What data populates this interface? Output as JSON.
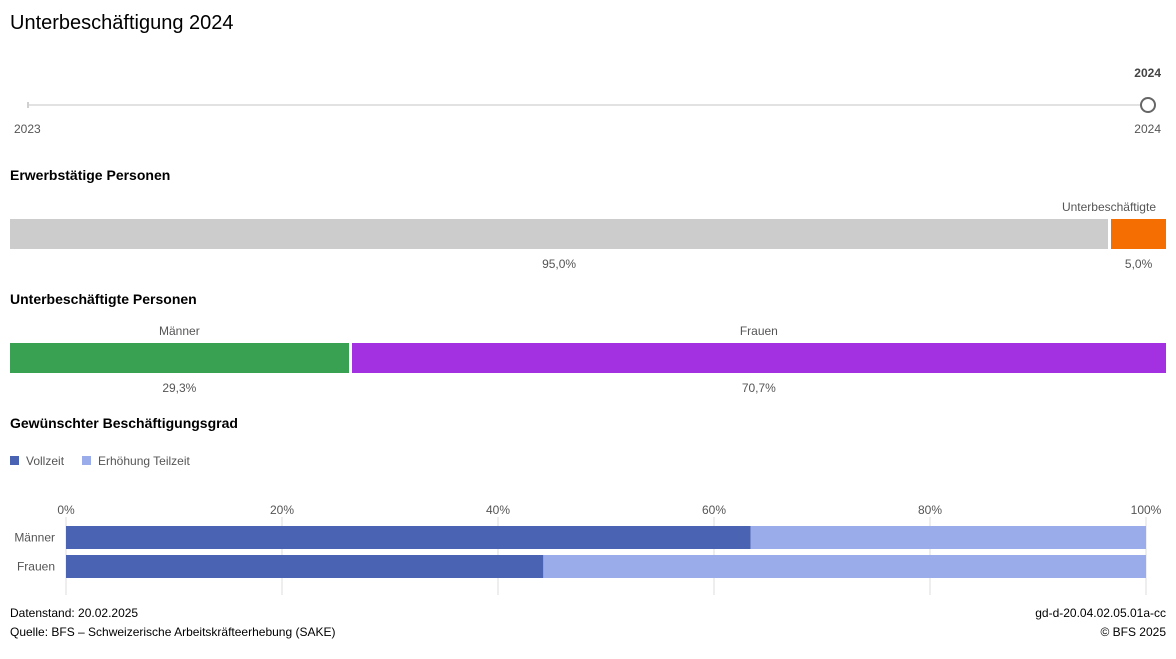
{
  "title": "Unterbeschäftigung 2024",
  "slider": {
    "selected": "2024",
    "start_label": "2023",
    "end_label": "2024",
    "value": 2024,
    "min": 2023,
    "max": 2024
  },
  "colors": {
    "grey": "#cccccc",
    "orange": "#f56e02",
    "green": "#38a152",
    "purple": "#a330e1",
    "vollzeit": "#4a63b2",
    "teilzeit": "#9aacea",
    "grid": "#dddddd"
  },
  "chart_data": [
    {
      "type": "bar",
      "stacked": true,
      "title": "Erwerbstätige Personen",
      "segments": [
        {
          "name": "",
          "value": 95.0,
          "label": "95,0%",
          "color": "#cccccc"
        },
        {
          "name": "Unterbeschäftigte",
          "value": 5.0,
          "label": "5,0%",
          "color": "#f56e02"
        }
      ]
    },
    {
      "type": "bar",
      "stacked": true,
      "title": "Unterbeschäftigte Personen",
      "segments": [
        {
          "name": "Männer",
          "value": 29.3,
          "label": "29,3%",
          "color": "#38a152"
        },
        {
          "name": "Frauen",
          "value": 70.7,
          "label": "70,7%",
          "color": "#a330e1"
        }
      ]
    },
    {
      "type": "bar",
      "stacked": true,
      "orientation": "horizontal",
      "title": "Gewünschter Beschäftigungsgrad",
      "categories": [
        "Männer",
        "Frauen"
      ],
      "series": [
        {
          "name": "Vollzeit",
          "values": [
            63.4,
            44.2
          ],
          "color": "#4a63b2"
        },
        {
          "name": "Erhöhung Teilzeit",
          "values": [
            36.6,
            55.8
          ],
          "color": "#9aacea"
        }
      ],
      "xlim": [
        0,
        100
      ],
      "ticks": [
        "0%",
        "20%",
        "40%",
        "60%",
        "80%",
        "100%"
      ],
      "tick_values": [
        0,
        20,
        40,
        60,
        80,
        100
      ],
      "grid": true,
      "legend": "top-left"
    }
  ],
  "footer": {
    "datenstand": "Datenstand: 20.02.2025",
    "quelle": "Quelle: BFS – Schweizerische Arbeitskräfteerhebung (SAKE)",
    "code": "gd-d-20.04.02.05.01a-cc",
    "copyright": "© BFS 2025"
  }
}
